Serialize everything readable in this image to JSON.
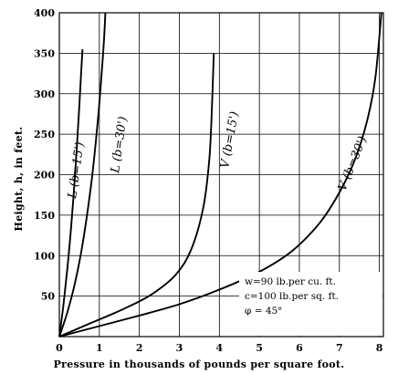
{
  "chart_data": {
    "type": "line",
    "title": "",
    "xlabel": "Pressure  in thousands of pounds per square foot.",
    "ylabel": "Height, h, in feet.",
    "xlim": [
      0,
      8.1
    ],
    "ylim": [
      0,
      400
    ],
    "xticks": [
      0,
      1,
      2,
      3,
      4,
      5,
      6,
      7,
      8
    ],
    "yticks": [
      50,
      100,
      150,
      200,
      250,
      300,
      350,
      400
    ],
    "grid": true,
    "series": [
      {
        "name": "L (b=15')",
        "x": [
          0,
          0.1,
          0.2,
          0.3,
          0.4,
          0.5,
          0.55,
          0.58
        ],
        "y": [
          0,
          38,
          84,
          138,
          205,
          285,
          330,
          355
        ]
      },
      {
        "name": "L (b=30')",
        "x": [
          0,
          0.2,
          0.4,
          0.6,
          0.8,
          0.95,
          1.05,
          1.12,
          1.15
        ],
        "y": [
          0,
          30,
          68,
          120,
          190,
          260,
          320,
          370,
          400
        ]
      },
      {
        "name": "V (b=15')",
        "x": [
          0,
          0.8,
          1.6,
          2.3,
          2.9,
          3.3,
          3.6,
          3.75,
          3.82,
          3.86
        ],
        "y": [
          0,
          17,
          34,
          52,
          76,
          108,
          160,
          220,
          290,
          350
        ]
      },
      {
        "name": "V (b=30')",
        "x": [
          0,
          1,
          2,
          3,
          4,
          5,
          5.8,
          6.5,
          7,
          7.4,
          7.7,
          7.9,
          8.05
        ],
        "y": [
          0,
          13,
          26,
          40,
          58,
          80,
          105,
          140,
          178,
          220,
          268,
          320,
          400
        ]
      }
    ],
    "curve_labels": [
      "L (b=15')",
      "L (b=30')",
      "V (b=15')",
      "V (b=30')"
    ],
    "annotation": {
      "line1": "w=90 lb.per cu. ft.",
      "line2": "c=100 lb.per sq. ft.",
      "line3": "φ = 45°"
    }
  }
}
